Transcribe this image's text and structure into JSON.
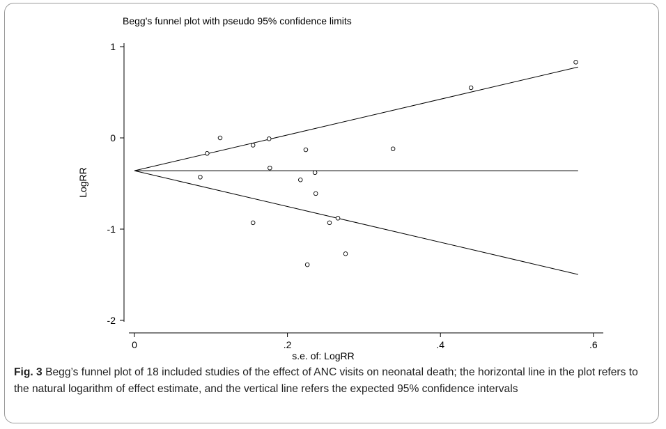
{
  "chart_data": {
    "type": "scatter",
    "title": "Begg's funnel plot with pseudo 95% confidence limits",
    "xlabel": "s.e. of: LogRR",
    "ylabel": "LogRR",
    "xlim": [
      0,
      0.62
    ],
    "ylim": [
      -2,
      1
    ],
    "x_ticks": [
      0,
      0.2,
      0.4,
      0.6
    ],
    "x_tick_labels": [
      "0",
      ".2",
      ".4",
      ".6"
    ],
    "y_ticks": [
      1,
      0,
      -1,
      -2
    ],
    "y_tick_labels": [
      "1",
      "0",
      "-1",
      "-2"
    ],
    "grid": false,
    "pooled_estimate": -0.36,
    "funnel_x_max": 0.58,
    "points": [
      {
        "x": 0.086,
        "y": -0.43
      },
      {
        "x": 0.095,
        "y": -0.17
      },
      {
        "x": 0.112,
        "y": 0.0
      },
      {
        "x": 0.155,
        "y": -0.08
      },
      {
        "x": 0.155,
        "y": -0.93
      },
      {
        "x": 0.176,
        "y": -0.01
      },
      {
        "x": 0.177,
        "y": -0.33
      },
      {
        "x": 0.217,
        "y": -0.46
      },
      {
        "x": 0.224,
        "y": -0.13
      },
      {
        "x": 0.226,
        "y": -1.39
      },
      {
        "x": 0.236,
        "y": -0.38
      },
      {
        "x": 0.237,
        "y": -0.61
      },
      {
        "x": 0.255,
        "y": -0.93
      },
      {
        "x": 0.266,
        "y": -0.88
      },
      {
        "x": 0.276,
        "y": -1.27
      },
      {
        "x": 0.338,
        "y": -0.12
      },
      {
        "x": 0.44,
        "y": 0.55
      },
      {
        "x": 0.577,
        "y": 0.83
      }
    ]
  },
  "caption": {
    "label": "Fig. 3",
    "text": " Begg’s funnel plot of 18 included studies of the effect of ANC visits on neonatal death; the horizontal line in the plot refers to the natural logarithm of effect estimate, and the vertical line refers the expected 95% confidence intervals"
  }
}
